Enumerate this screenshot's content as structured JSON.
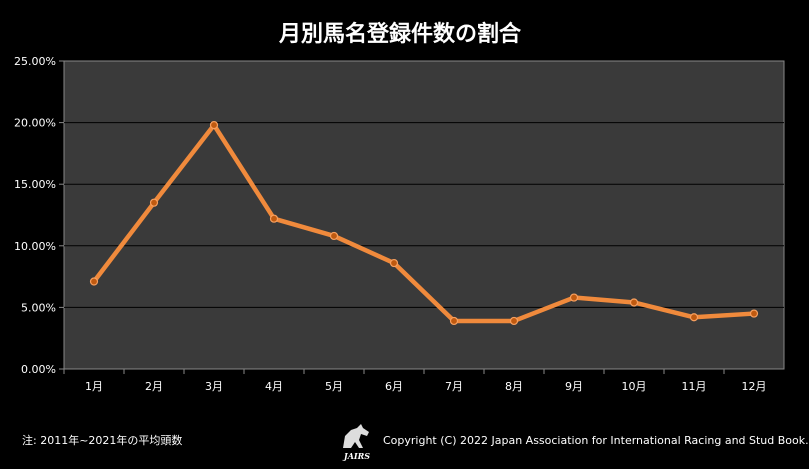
{
  "chart_data": {
    "type": "line",
    "title": "月別馬名登録件数の割合",
    "xlabel": "",
    "ylabel": "",
    "categories": [
      "1月",
      "2月",
      "3月",
      "4月",
      "5月",
      "6月",
      "7月",
      "8月",
      "9月",
      "10月",
      "11月",
      "12月"
    ],
    "series": [
      {
        "values": [
          7.1,
          13.5,
          19.8,
          12.2,
          10.8,
          8.6,
          3.9,
          3.9,
          5.8,
          5.4,
          4.2,
          4.5
        ],
        "color": "#f08a3c"
      }
    ],
    "ylim": [
      0,
      25
    ],
    "yticks": [
      "0.00%",
      "5.00%",
      "10.00%",
      "15.00%",
      "20.00%",
      "25.00%"
    ],
    "grid": true,
    "plot_background": "#3a3a3a"
  },
  "footnote": "注: 2011年~2021年の平均頭数",
  "copyright": "Copyright (C) 2022 Japan Association for International Racing and Stud Book.",
  "logo": {
    "text": "JAIRS",
    "icon": "horse-logo-icon"
  }
}
